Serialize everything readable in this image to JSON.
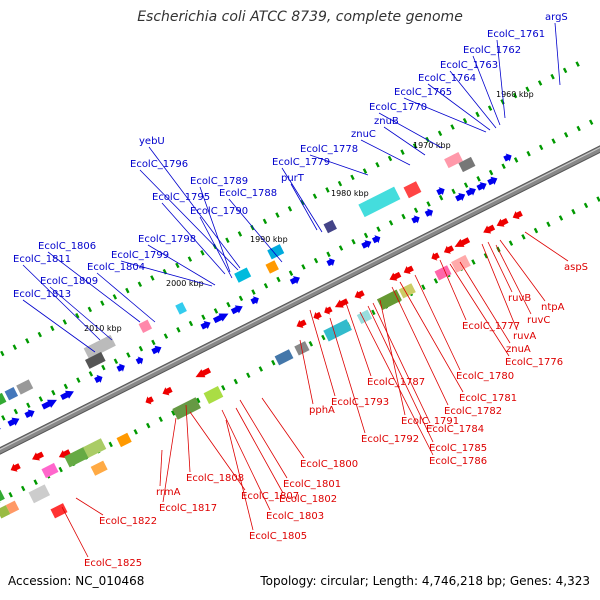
{
  "title": "Escherichia coli ATCC 8739, complete genome",
  "accession": "Accession: NC_010468",
  "topology": "Topology: circular; Length: 4,746,218 bp; Genes: 4,323",
  "colors": {
    "forward_label": "#0000cc",
    "reverse_label": "#dd0000",
    "forward_gene": "#0000ee",
    "reverse_gene": "#ee0000",
    "backbone": "#888888",
    "tick_mark": "#009900"
  },
  "kbp_ticks": [
    "1960 kbp",
    "1970 kbp",
    "1980 kbp",
    "1990 kbp",
    "2000 kbp",
    "2010 kbp"
  ],
  "forward_labels": [
    "argS",
    "EcolC_1761",
    "EcolC_1762",
    "EcolC_1763",
    "EcolC_1764",
    "EcolC_1765",
    "EcolC_1770",
    "znuB",
    "znuC",
    "EcolC_1778",
    "EcolC_1779",
    "purT",
    "yebU",
    "EcolC_1796",
    "EcolC_1789",
    "EcolC_1795",
    "EcolC_1788",
    "EcolC_1790",
    "EcolC_1798",
    "EcolC_1799",
    "EcolC_1806",
    "EcolC_1811",
    "EcolC_1804",
    "EcolC_1809",
    "EcolC_1813"
  ],
  "reverse_labels": [
    "aspS",
    "ntpA",
    "ruvB",
    "ruvC",
    "ruvA",
    "EcolC_1777",
    "znuA",
    "EcolC_1776",
    "EcolC_1780",
    "EcolC_1787",
    "EcolC_1781",
    "EcolC_1782",
    "EcolC_1793",
    "pphA",
    "EcolC_1791",
    "EcolC_1784",
    "EcolC_1792",
    "EcolC_1785",
    "EcolC_1786",
    "EcolC_1800",
    "EcolC_1801",
    "EcolC_1808",
    "EcolC_1802",
    "EcolC_1807",
    "EcolC_1803",
    "rrmA",
    "EcolC_1817",
    "EcolC_1805",
    "EcolC_1822",
    "EcolC_1825"
  ]
}
